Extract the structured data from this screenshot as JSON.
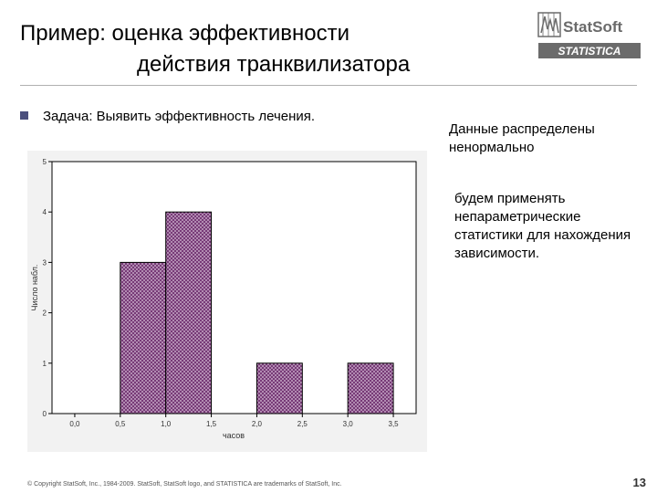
{
  "slide": {
    "title_line1": "Пример: оценка эффективности",
    "title_line2": "действия транквилизатора",
    "bullet_text": "Задача: Выявить эффективность лечения.",
    "side_text_1": "Данные распределены ненормально",
    "side_text_2": "будем применять непараметрические статистики для нахождения зависимости.",
    "footer": "© Copyright StatSoft, Inc., 1984-2009. StatSoft, StatSoft logo, and STATISTICA are trademarks of StatSoft, Inc.",
    "page_number": "13"
  },
  "logo": {
    "brand": "StatSoft",
    "product": "STATISTICA",
    "color": "#6b6b6b"
  },
  "icons": {
    "bullet": "square-bullet-icon"
  },
  "colors": {
    "bullet": "#4b4f7d",
    "bar_fill": "#b090b0",
    "bar_pattern": "#6b2a6b"
  },
  "chart_data": {
    "type": "bar",
    "xlabel": "часов",
    "ylabel": "Число набл.",
    "x_ticks": [
      "0,0",
      "0,5",
      "1,0",
      "1,5",
      "2,0",
      "2,5",
      "3,0",
      "3,5"
    ],
    "y_ticks": [
      "0",
      "1",
      "2",
      "3",
      "4",
      "5"
    ],
    "xlim": [
      -0.25,
      3.75
    ],
    "ylim": [
      0,
      5
    ],
    "bins": [
      {
        "from": 0.5,
        "to": 1.0,
        "count": 3
      },
      {
        "from": 1.0,
        "to": 1.5,
        "count": 4
      },
      {
        "from": 2.0,
        "to": 2.5,
        "count": 1
      },
      {
        "from": 3.0,
        "to": 3.5,
        "count": 1
      }
    ],
    "grid": false,
    "fill_pattern": "crosshatch"
  }
}
